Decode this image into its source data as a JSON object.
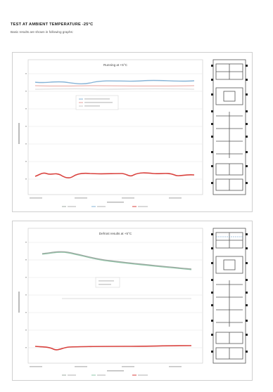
{
  "page": {
    "heading": "TEST AT AMBIENT TEMPERATURE -25°C",
    "subheading": "Basic results are shown in following graphs:"
  },
  "figures": [
    {
      "chart_title": "Running at +5°C",
      "legend_box": [
        "",
        "",
        ""
      ],
      "bottom_legend": [
        "",
        "",
        ""
      ],
      "xlabel": "",
      "ylabel": ""
    },
    {
      "chart_title": "Defrost results at +5°C",
      "legend_box": [
        "",
        ""
      ],
      "bottom_legend": [
        "",
        "",
        ""
      ],
      "xlabel": "",
      "ylabel": ""
    }
  ],
  "colors": {
    "series_blue": "#86b3d6",
    "series_red": "#d9423e",
    "series_grey": "#9ea8a2",
    "series_green": "#8fc7a8",
    "grid": "#e6e6e6"
  },
  "icons": [
    "refrigerated-truck-diagram-icon"
  ]
}
